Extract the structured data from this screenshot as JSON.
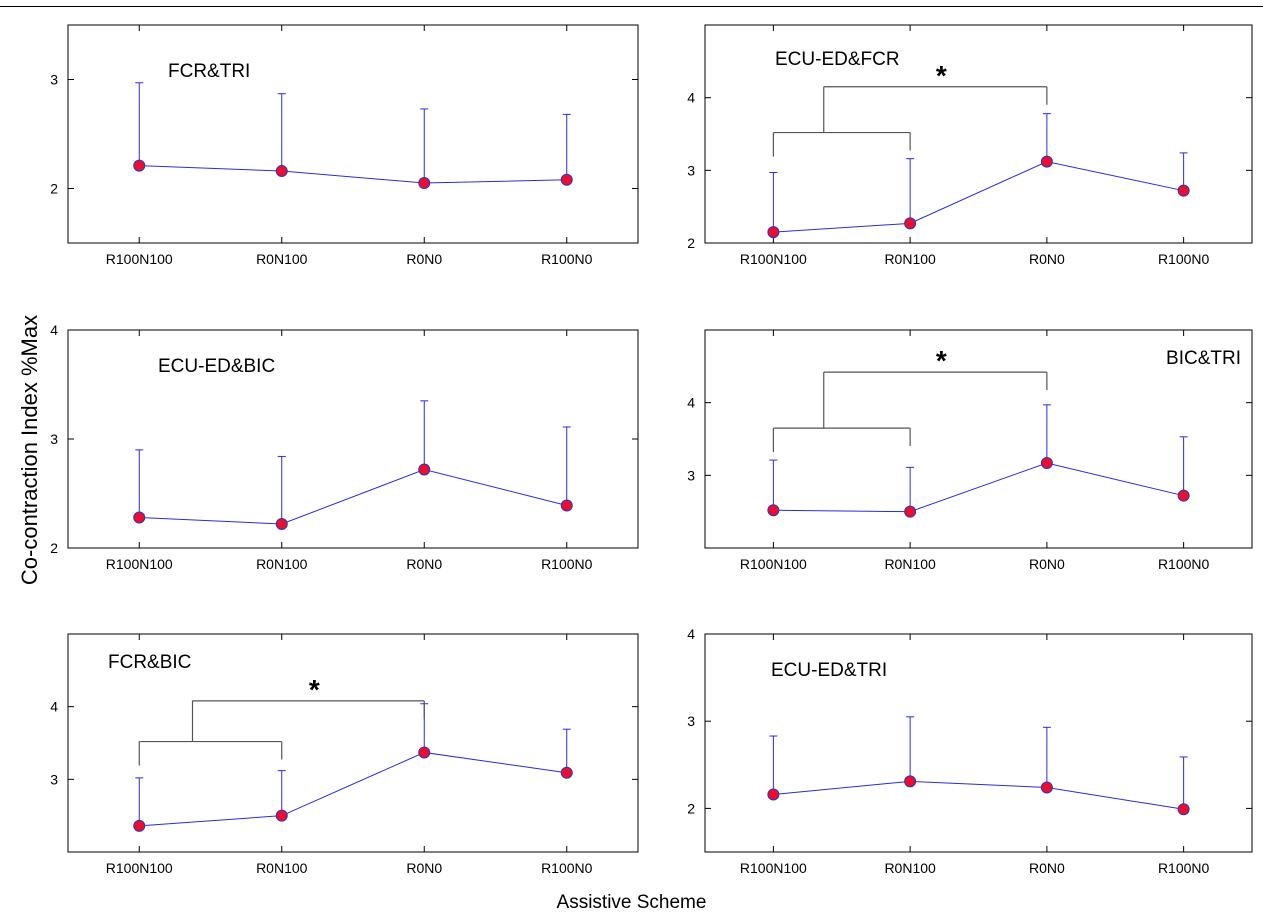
{
  "figure": {
    "ylabel": "Co-contraction Index %Max",
    "xlabel": "Assistive Scheme"
  },
  "colors": {
    "line": "#2b2bdb",
    "marker_fill": "#e8102e",
    "marker_edge": "#3030c0",
    "bracket": "#555555"
  },
  "chart_data": [
    {
      "type": "line",
      "title": "FCR&TRI",
      "categories": [
        "R100N100",
        "R0N100",
        "R0N0",
        "R100N0"
      ],
      "values": [
        2.21,
        2.16,
        2.05,
        2.08
      ],
      "error_upper": [
        2.97,
        2.87,
        2.73,
        2.68
      ],
      "ylim": [
        1.5,
        3.5
      ],
      "yticks": [
        2,
        3
      ],
      "significance": null
    },
    {
      "type": "line",
      "title": "ECU-ED&FCR",
      "categories": [
        "R100N100",
        "R0N100",
        "R0N0",
        "R100N0"
      ],
      "values": [
        2.15,
        2.27,
        3.12,
        2.72
      ],
      "error_upper": [
        2.97,
        3.16,
        3.78,
        3.24
      ],
      "ylim": [
        2,
        5
      ],
      "yticks": [
        2,
        3,
        4
      ],
      "significance": {
        "label": "*",
        "groups": [
          0,
          1
        ],
        "against": 2
      }
    },
    {
      "type": "line",
      "title": "ECU-ED&BIC",
      "categories": [
        "R100N100",
        "R0N100",
        "R0N0",
        "R100N0"
      ],
      "values": [
        2.28,
        2.22,
        2.72,
        2.39
      ],
      "error_upper": [
        2.9,
        2.84,
        3.35,
        3.11
      ],
      "ylim": [
        2,
        4
      ],
      "yticks": [
        2,
        3,
        4
      ],
      "significance": null
    },
    {
      "type": "line",
      "title": "BIC&TRI",
      "categories": [
        "R100N100",
        "R0N100",
        "R0N0",
        "R100N0"
      ],
      "values": [
        2.52,
        2.5,
        3.17,
        2.72
      ],
      "error_upper": [
        3.21,
        3.11,
        3.97,
        3.53
      ],
      "ylim": [
        2,
        5
      ],
      "yticks": [
        3,
        4
      ],
      "significance": {
        "label": "*",
        "groups": [
          0,
          1
        ],
        "against": 2
      }
    },
    {
      "type": "line",
      "title": "FCR&BIC",
      "categories": [
        "R100N100",
        "R0N100",
        "R0N0",
        "R100N0"
      ],
      "values": [
        2.36,
        2.5,
        3.37,
        3.09
      ],
      "error_upper": [
        3.02,
        3.12,
        4.04,
        3.69
      ],
      "ylim": [
        2,
        5
      ],
      "yticks": [
        3,
        4
      ],
      "significance": {
        "label": "*",
        "groups": [
          0,
          1
        ],
        "against": 2
      }
    },
    {
      "type": "line",
      "title": "ECU-ED&TRI",
      "categories": [
        "R100N100",
        "R0N100",
        "R0N0",
        "R100N0"
      ],
      "values": [
        2.16,
        2.31,
        2.24,
        1.99
      ],
      "error_upper": [
        2.83,
        3.05,
        2.93,
        2.59
      ],
      "ylim": [
        1.5,
        4
      ],
      "yticks": [
        2,
        3,
        4
      ],
      "significance": null
    }
  ]
}
